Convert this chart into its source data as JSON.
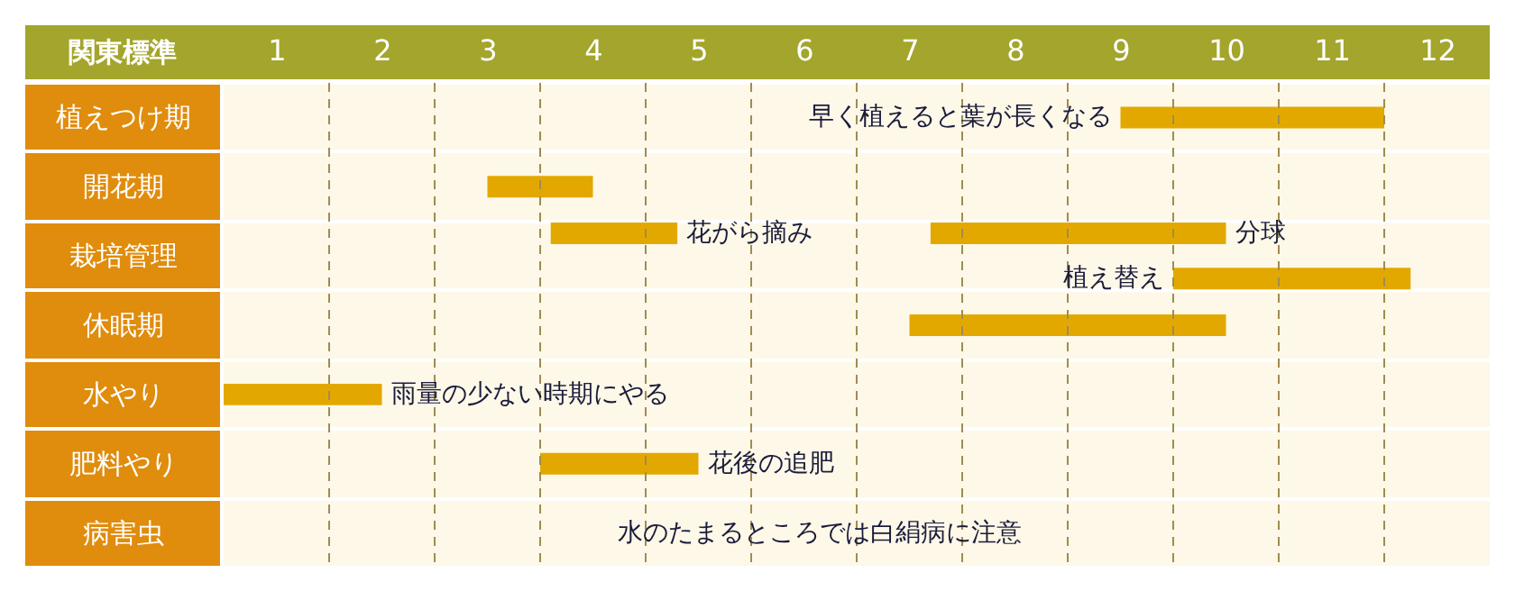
{
  "chart_data": {
    "type": "bar",
    "orientation": "horizontal",
    "ylabel": "関東標準",
    "categories": [
      "植えつけ期",
      "開花期",
      "栽培管理",
      "休眠期",
      "水やり",
      "肥料やり",
      "病害虫"
    ],
    "series": [
      {
        "color": "#e3a800",
        "base": [
          9,
          3,
          3.6,
          7,
          0.5,
          3.5,
          null
        ],
        "values": [
          2.5,
          1,
          1.2,
          3,
          1.5,
          1.5,
          null
        ]
      },
      {
        "color": "#e3a800",
        "base": [
          null,
          null,
          7.2,
          null,
          null,
          null,
          null
        ],
        "values": [
          null,
          null,
          2.8,
          null,
          null,
          null,
          null
        ]
      },
      {
        "color": "#e3a800",
        "base": [
          null,
          null,
          9.5,
          null,
          null,
          null,
          null
        ],
        "values": [
          null,
          null,
          2.25,
          null,
          null,
          null,
          null
        ]
      }
    ],
    "xlim": [
      0.5,
      12.5
    ],
    "xticks": [
      1,
      {
        "value": 1.5,
        "label": null
      },
      2,
      {
        "value": 2.5,
        "label": null
      },
      3,
      {
        "value": 3.5,
        "label": null
      },
      4,
      {
        "value": 4.5,
        "label": null
      },
      5,
      {
        "value": 5.5,
        "label": null
      },
      6,
      {
        "value": 6.5,
        "label": null
      },
      7,
      {
        "value": 7.5,
        "label": null
      },
      8,
      {
        "value": 8.5,
        "label": null
      },
      9,
      {
        "value": 9.5,
        "label": null
      },
      10,
      {
        "value": 10.5,
        "label": null
      },
      11,
      {
        "value": 11.5,
        "label": null
      },
      12
    ],
    "grid": true,
    "annotations": [
      {
        "text": "早く植えると葉が長くなる",
        "x": 9,
        "y": "植えつけ期"
      },
      "花がら摘み",
      "分球",
      "植え替え",
      {
        "text": "雨量の少ない時期にやる",
        "x": 2,
        "y": "水やり"
      },
      {
        "text": "花後の追肥",
        "x": 5,
        "y": "肥料やり"
      },
      "水のたまるところでは白絹病に注意"
    ]
  }
}
